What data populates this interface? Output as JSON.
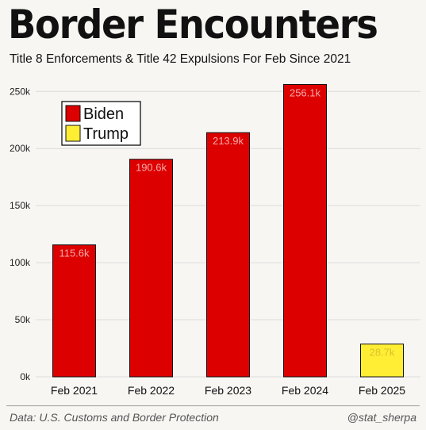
{
  "header": {
    "title": "Border Encounters",
    "subtitle": "Title 8 Enforcements & Title 42 Expulsions For Feb Since 2021"
  },
  "footer": {
    "source": "Data: U.S. Customs and Border Protection",
    "credit": "@stat_sherpa"
  },
  "chart_data": {
    "type": "bar",
    "title": "Border Encounters",
    "subtitle": "Title 8 Enforcements & Title 42 Expulsions For Feb Since 2021",
    "categories": [
      "Feb 2021",
      "Feb 2022",
      "Feb 2023",
      "Feb 2024",
      "Feb 2025"
    ],
    "values": [
      115600,
      190600,
      213900,
      256100,
      28700
    ],
    "data_labels": [
      "115.6k",
      "190.6k",
      "213.9k",
      "256.1k",
      "28.7k"
    ],
    "bar_groups": [
      "Biden",
      "Biden",
      "Biden",
      "Biden",
      "Trump"
    ],
    "legend": [
      {
        "label": "Biden",
        "color": "#dd0000"
      },
      {
        "label": "Trump",
        "color": "#ffee33"
      }
    ],
    "legend_position": "top-left",
    "yticks": [
      0,
      50000,
      100000,
      150000,
      200000,
      250000
    ],
    "ytick_labels": [
      "0k",
      "50k",
      "100k",
      "150k",
      "200k",
      "250k"
    ],
    "ylim": [
      0,
      262000
    ],
    "grid": true,
    "colors": {
      "biden": "#dd0000",
      "trump": "#ffee33",
      "label_on_biden": "#f6a9a9",
      "label_on_trump": "#d9c22e",
      "bar_outline": "#111111",
      "grid": "#dcdcdc"
    }
  }
}
